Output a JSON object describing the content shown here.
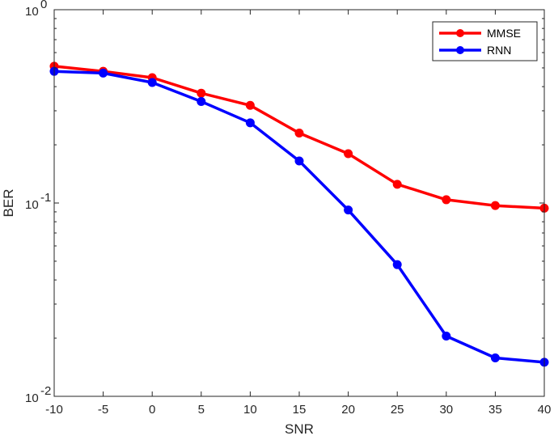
{
  "chart_data": {
    "type": "line",
    "xlabel": "SNR",
    "ylabel": "BER",
    "x": [
      -10,
      -5,
      0,
      5,
      10,
      15,
      20,
      25,
      30,
      35,
      40
    ],
    "xlim": [
      -10,
      40
    ],
    "ylim": [
      0.01,
      1
    ],
    "yscale": "log",
    "xticks": [
      "-10",
      "-5",
      "0",
      "5",
      "10",
      "15",
      "20",
      "25",
      "30",
      "35",
      "40"
    ],
    "yticks": [
      {
        "base": "10",
        "exp": "-2",
        "value": 0.01
      },
      {
        "base": "10",
        "exp": "-1",
        "value": 0.1
      },
      {
        "base": "10",
        "exp": "0",
        "value": 1
      }
    ],
    "grid": false,
    "legend_position": "top-right",
    "series": [
      {
        "name": "MMSE",
        "color": "#ff0000",
        "values": [
          0.51,
          0.48,
          0.445,
          0.37,
          0.32,
          0.23,
          0.18,
          0.125,
          0.104,
          0.097,
          0.094
        ]
      },
      {
        "name": "RNN",
        "color": "#0000ff",
        "values": [
          0.48,
          0.47,
          0.42,
          0.335,
          0.26,
          0.165,
          0.092,
          0.048,
          0.0205,
          0.0158,
          0.015
        ]
      }
    ]
  }
}
